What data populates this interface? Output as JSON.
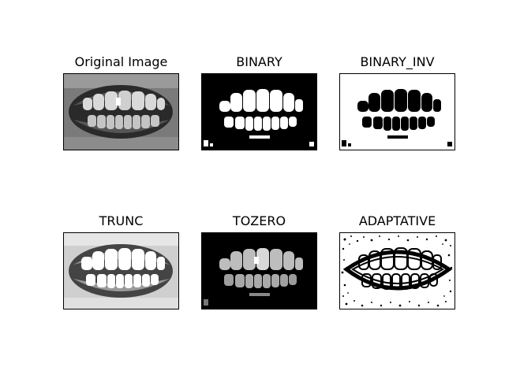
{
  "figure": {
    "panels": [
      {
        "title": "Original Image",
        "variant": "original"
      },
      {
        "title": "BINARY",
        "variant": "binary"
      },
      {
        "title": "BINARY_INV",
        "variant": "binary_inv"
      },
      {
        "title": "TRUNC",
        "variant": "trunc"
      },
      {
        "title": "TOZERO",
        "variant": "tozero"
      },
      {
        "title": "ADAPTATIVE",
        "variant": "adaptive"
      }
    ]
  }
}
